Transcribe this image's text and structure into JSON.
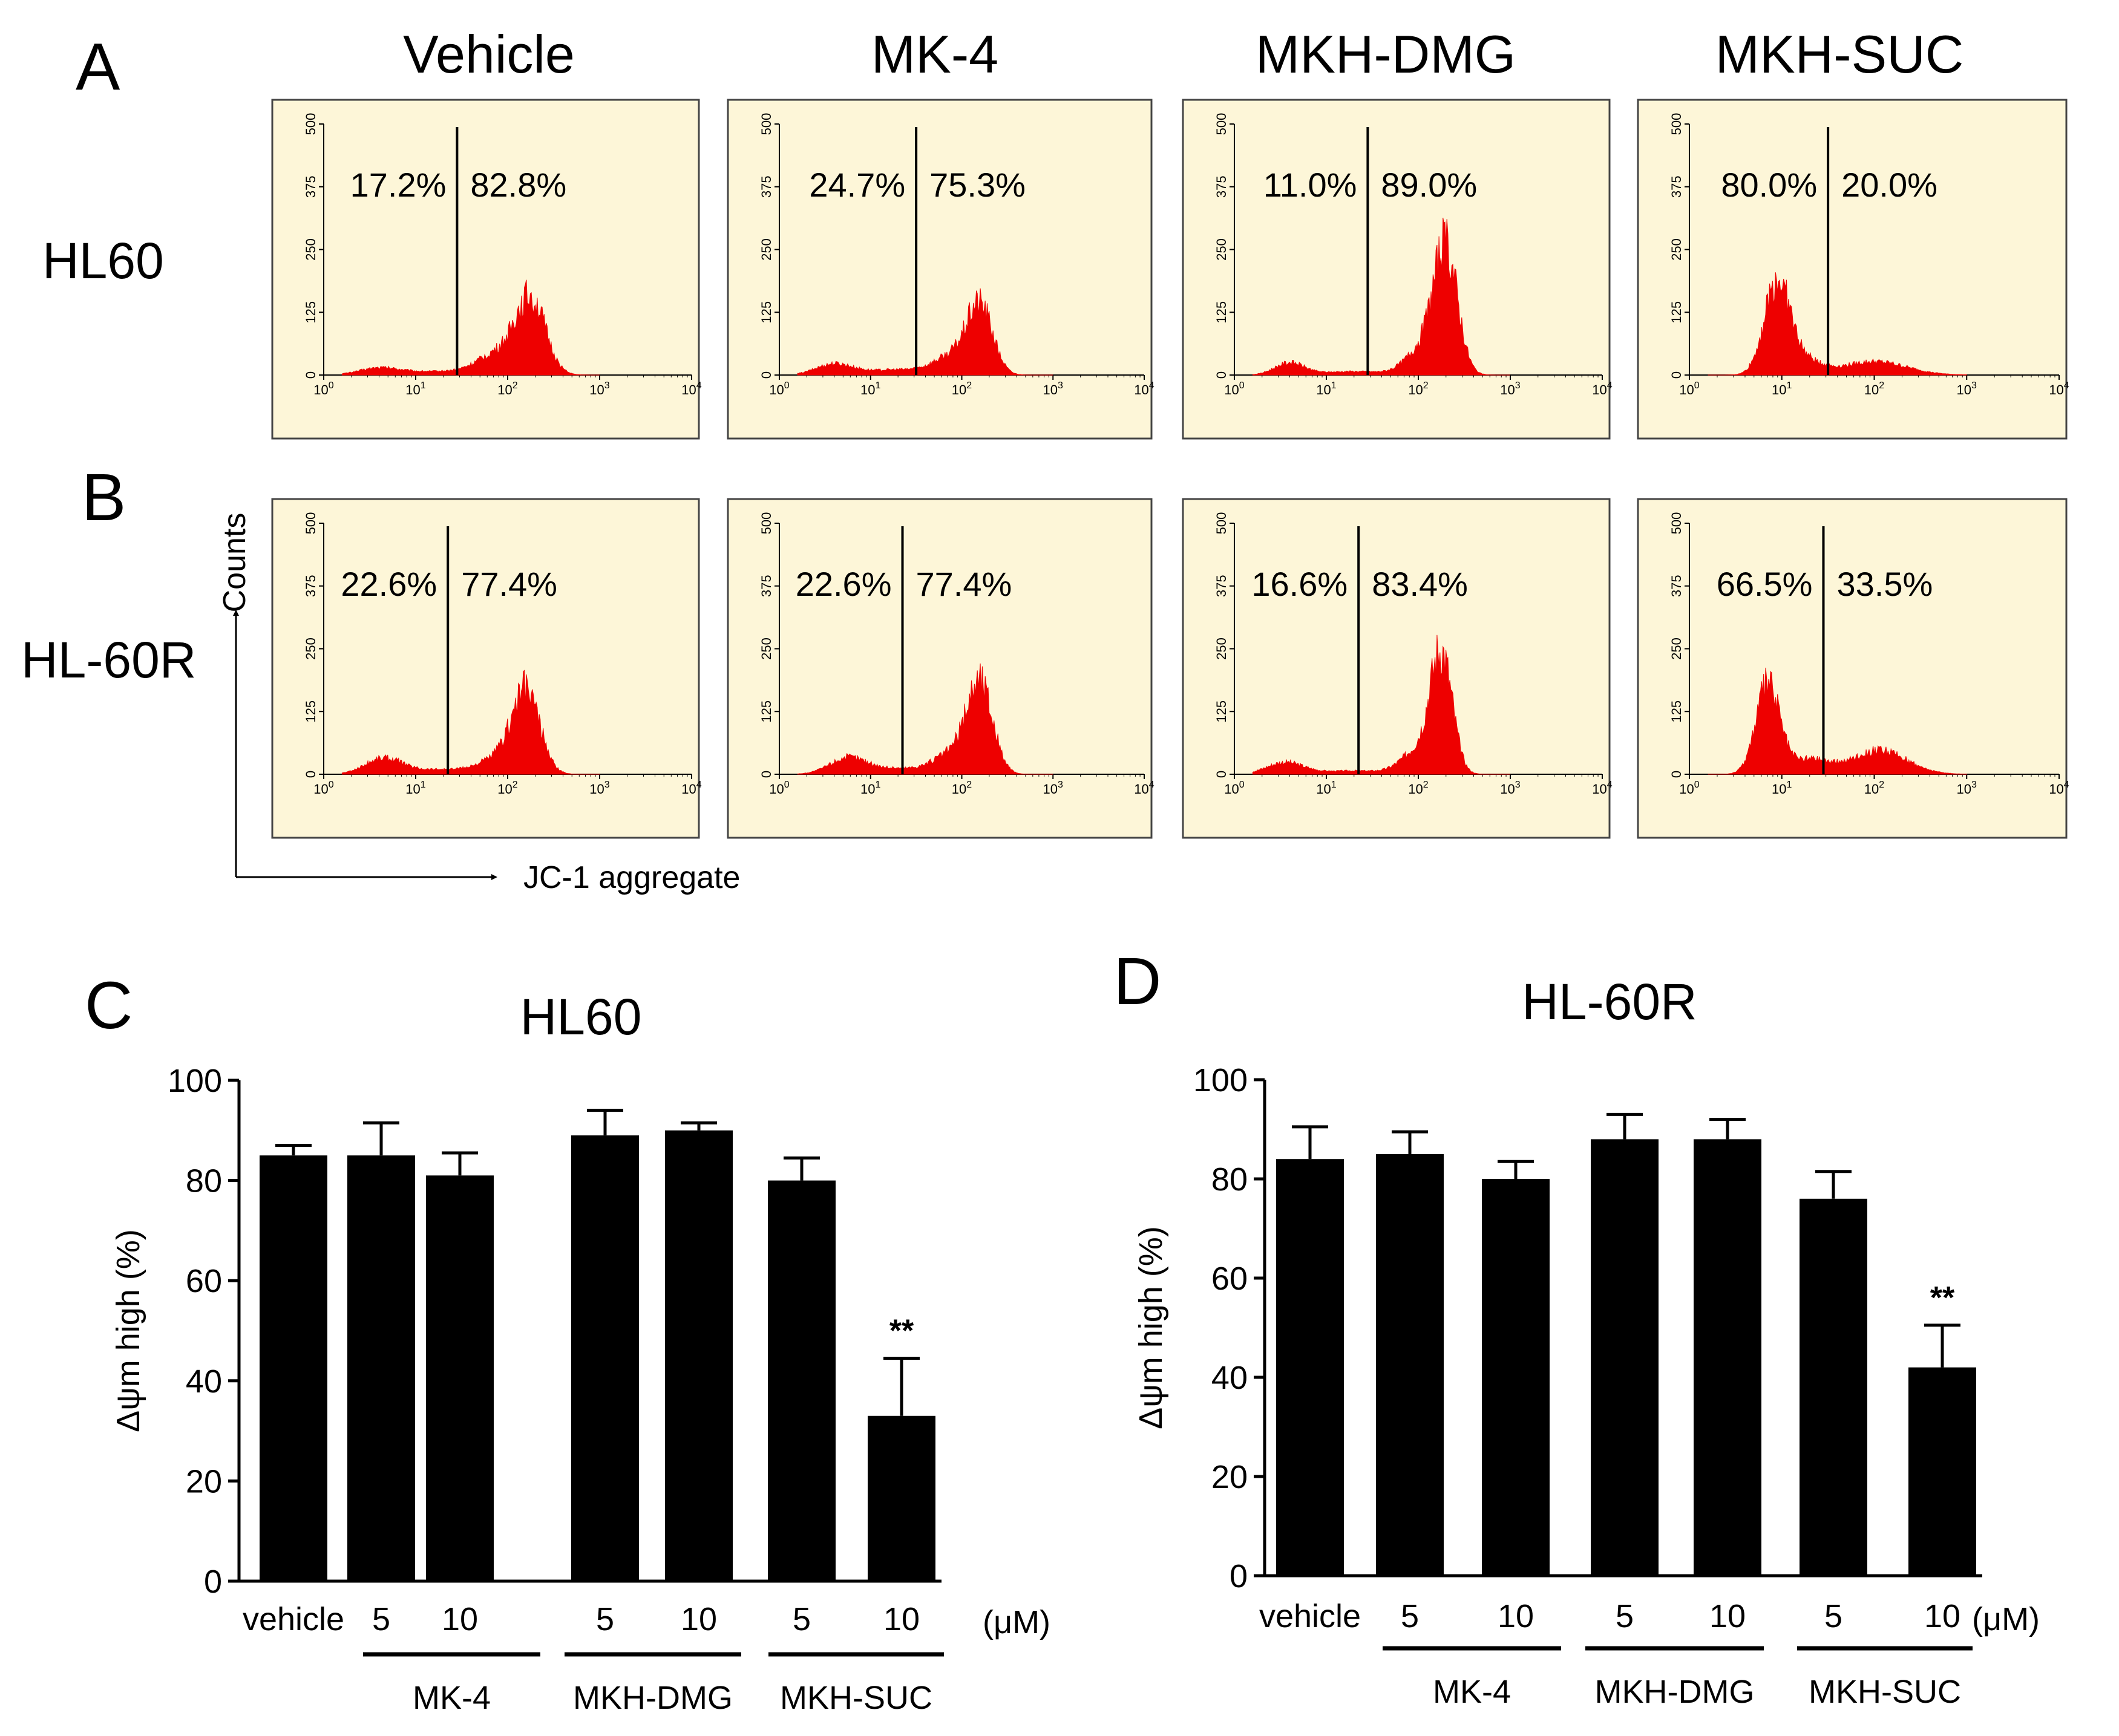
{
  "flow": {
    "panel_label_A": "A",
    "panel_label_B": "B",
    "columns": [
      "Vehicle",
      "MK-4",
      "MKH-DMG",
      "MKH-SUC"
    ],
    "rows": [
      {
        "label": "HL60",
        "panels": [
          {
            "left_pct": "17.2%",
            "right_pct": "82.8%"
          },
          {
            "left_pct": "24.7%",
            "right_pct": "75.3%"
          },
          {
            "left_pct": "11.0%",
            "right_pct": "89.0%"
          },
          {
            "left_pct": "80.0%",
            "right_pct": "20.0%"
          }
        ]
      },
      {
        "label": "HL-60R",
        "panels": [
          {
            "left_pct": "22.6%",
            "right_pct": "77.4%"
          },
          {
            "left_pct": "22.6%",
            "right_pct": "77.4%"
          },
          {
            "left_pct": "16.6%",
            "right_pct": "83.4%"
          },
          {
            "left_pct": "66.5%",
            "right_pct": "33.5%"
          }
        ]
      }
    ],
    "y_ticks": [
      "0",
      "125",
      "250",
      "375",
      "500"
    ],
    "x_ticks": [
      {
        "base": "10",
        "exp": "0"
      },
      {
        "base": "10",
        "exp": "1"
      },
      {
        "base": "10",
        "exp": "2"
      },
      {
        "base": "10",
        "exp": "3"
      },
      {
        "base": "10",
        "exp": "4"
      }
    ],
    "y_axis_label": "Counts",
    "x_axis_label": "JC-1 aggregate",
    "histogram_color": "#ee0000",
    "panel_background": "#fdf6d8"
  },
  "chart_data": [
    {
      "type": "bar",
      "panel_label": "C",
      "title": "HL60",
      "ylabel": "Δψm high (%)",
      "ylim": [
        0,
        100
      ],
      "yticks": [
        "0",
        "20",
        "40",
        "60",
        "80",
        "100"
      ],
      "categories": [
        "vehicle",
        "5",
        "10",
        "5",
        "10",
        "5",
        "10"
      ],
      "values": [
        85,
        85,
        81,
        89,
        90,
        80,
        33
      ],
      "errors": [
        2,
        6.5,
        4.5,
        5,
        1.5,
        4.5,
        11.5
      ],
      "significance": [
        "",
        "",
        "",
        "",
        "",
        "",
        "**"
      ],
      "unit_label": "(μM)",
      "groups": [
        {
          "label": "MK-4",
          "from": 1,
          "to": 2
        },
        {
          "label": "MKH-DMG",
          "from": 3,
          "to": 4
        },
        {
          "label": "MKH-SUC",
          "from": 5,
          "to": 6
        }
      ],
      "bar_color": "#000000"
    },
    {
      "type": "bar",
      "panel_label": "D",
      "title": "HL-60R",
      "ylabel": "Δψm high (%)",
      "ylim": [
        0,
        100
      ],
      "yticks": [
        "0",
        "20",
        "40",
        "60",
        "80",
        "100"
      ],
      "categories": [
        "vehicle",
        "5",
        "10",
        "5",
        "10",
        "5",
        "10"
      ],
      "values": [
        84,
        85,
        80,
        88,
        88,
        76,
        42
      ],
      "errors": [
        6.5,
        4.5,
        3.5,
        5,
        4,
        5.5,
        8.5
      ],
      "significance": [
        "",
        "",
        "",
        "",
        "",
        "",
        "**"
      ],
      "unit_label": "(μM)",
      "groups": [
        {
          "label": "MK-4",
          "from": 1,
          "to": 2
        },
        {
          "label": "MKH-DMG",
          "from": 3,
          "to": 4
        },
        {
          "label": "MKH-SUC",
          "from": 5,
          "to": 6
        }
      ],
      "bar_color": "#000000"
    }
  ]
}
